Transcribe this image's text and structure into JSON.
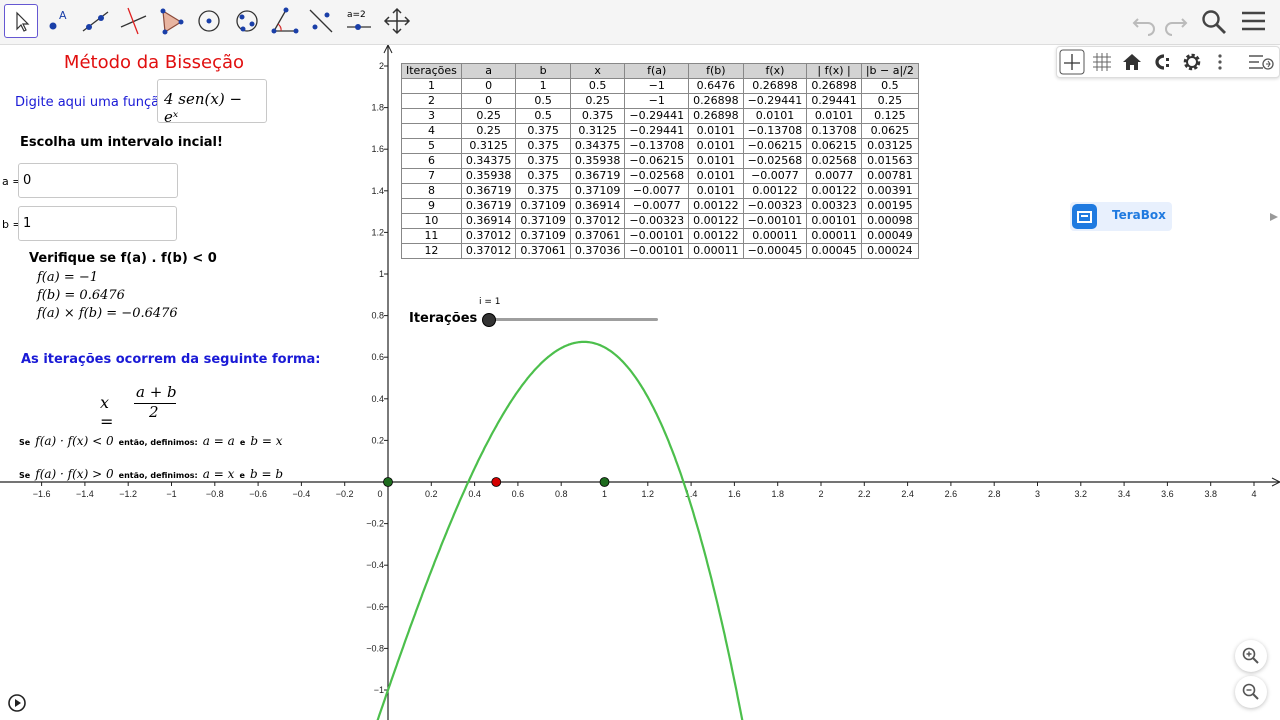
{
  "toolbar": {
    "tools": [
      "move-tool",
      "point-tool",
      "line-tool",
      "perpendicular-tool",
      "polygon-tool",
      "circle-tool",
      "conic-tool",
      "angle-tool",
      "reflect-tool",
      "slider-tool",
      "move-graphics-tool"
    ],
    "slider_label": "a=2",
    "point_label": "A"
  },
  "left_panel": {
    "title": "Método da Bisseção",
    "function_label": "Digite aqui uma função:",
    "function_value": "4 sen(x) − eˣ",
    "interval_prompt": "Escolha um intervalo incial!",
    "a_label": "a =",
    "a_value": "0",
    "b_label": "b =",
    "b_value": "1",
    "verify_label": "Verifique se  f(a) . f(b) < 0",
    "fa_line": "f(a) = −1",
    "fb_line": "f(b) = 0.6476",
    "fab_line": "f(a) × f(b) = −0.6476",
    "iter_heading": "As iterações ocorrem da seguinte forma:",
    "formula_lhs": "x =",
    "formula_num": "a + b",
    "formula_den": "2",
    "rule1_se": "Se",
    "rule1_cond": "f(a) · f(x) < 0",
    "rule1_then": "então, definimos:",
    "rule1_assign1": "a = a",
    "rule1_e": "e",
    "rule1_assign2": "b = x",
    "rule2_se": "Se",
    "rule2_cond": "f(a) · f(x) > 0",
    "rule2_then": "então, definimos:",
    "rule2_assign1": "a = x",
    "rule2_e": "e",
    "rule2_assign2": "b = b"
  },
  "table": {
    "headers": [
      "Iterações",
      "a",
      "b",
      "x",
      "f(a)",
      "f(b)",
      "f(x)",
      "| f(x) |",
      "|b − a|/2"
    ],
    "rows": [
      [
        "1",
        "0",
        "1",
        "0.5",
        "−1",
        "0.6476",
        "0.26898",
        "0.26898",
        "0.5"
      ],
      [
        "2",
        "0",
        "0.5",
        "0.25",
        "−1",
        "0.26898",
        "−0.29441",
        "0.29441",
        "0.25"
      ],
      [
        "3",
        "0.25",
        "0.5",
        "0.375",
        "−0.29441",
        "0.26898",
        "0.0101",
        "0.0101",
        "0.125"
      ],
      [
        "4",
        "0.25",
        "0.375",
        "0.3125",
        "−0.29441",
        "0.0101",
        "−0.13708",
        "0.13708",
        "0.0625"
      ],
      [
        "5",
        "0.3125",
        "0.375",
        "0.34375",
        "−0.13708",
        "0.0101",
        "−0.06215",
        "0.06215",
        "0.03125"
      ],
      [
        "6",
        "0.34375",
        "0.375",
        "0.35938",
        "−0.06215",
        "0.0101",
        "−0.02568",
        "0.02568",
        "0.01563"
      ],
      [
        "7",
        "0.35938",
        "0.375",
        "0.36719",
        "−0.02568",
        "0.0101",
        "−0.0077",
        "0.0077",
        "0.00781"
      ],
      [
        "8",
        "0.36719",
        "0.375",
        "0.37109",
        "−0.0077",
        "0.0101",
        "0.00122",
        "0.00122",
        "0.00391"
      ],
      [
        "9",
        "0.36719",
        "0.37109",
        "0.36914",
        "−0.0077",
        "0.00122",
        "−0.00323",
        "0.00323",
        "0.00195"
      ],
      [
        "10",
        "0.36914",
        "0.37109",
        "0.37012",
        "−0.00323",
        "0.00122",
        "−0.00101",
        "0.00101",
        "0.00098"
      ],
      [
        "11",
        "0.37012",
        "0.37109",
        "0.37061",
        "−0.00101",
        "0.00122",
        "0.00011",
        "0.00011",
        "0.00049"
      ],
      [
        "12",
        "0.37012",
        "0.37061",
        "0.37036",
        "−0.00101",
        "0.00011",
        "−0.00045",
        "0.00045",
        "0.00024"
      ]
    ]
  },
  "slider": {
    "name": "Iterações",
    "value_label": "i = 1",
    "value": 1,
    "min": 1,
    "max": 12
  },
  "terabox_label": "TeraBox",
  "graph": {
    "x_ticks": [
      "−1.6",
      "−1.4",
      "−1.2",
      "−1",
      "−0.8",
      "−0.6",
      "−0.4",
      "−0.2",
      "0",
      "0.2",
      "0.4",
      "0.6",
      "0.8",
      "1",
      "1.2",
      "1.4",
      "1.6",
      "1.8",
      "2",
      "2.2",
      "2.4",
      "2.6",
      "2.8",
      "3",
      "3.2",
      "3.4",
      "3.6",
      "3.8",
      "4"
    ],
    "y_ticks": [
      "2",
      "1.8",
      "1.6",
      "1.4",
      "1.2",
      "1",
      "0.8",
      "0.6",
      "0.4",
      "0.2",
      "−0.2",
      "−0.4",
      "−0.6",
      "−0.8",
      "−1"
    ],
    "curve_color": "#4cbf4c",
    "point_color_a": "#1e6b1e",
    "point_color_x": "#d40000",
    "a": 0,
    "b": 1,
    "x": 0.5
  }
}
